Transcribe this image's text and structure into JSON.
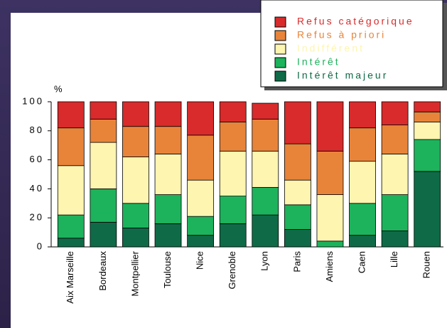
{
  "chart_data": {
    "type": "stacked_bar",
    "y_label": "%",
    "categories": [
      "Aix Marseille",
      "Bordeaux",
      "Montpellier",
      "Toulouse",
      "Nice",
      "Grenoble",
      "Lyon",
      "Paris",
      "Amiens",
      "Caen",
      "Lille",
      "Rouen"
    ],
    "series": [
      {
        "name": "Intérêt majeur",
        "color": "#0f6b47",
        "values": [
          6,
          17,
          13,
          16,
          8,
          16,
          22,
          12,
          0,
          8,
          11,
          52
        ]
      },
      {
        "name": "Intérêt",
        "color": "#1db35c",
        "values": [
          16,
          23,
          17,
          20,
          13,
          19,
          19,
          17,
          4,
          22,
          25,
          22
        ]
      },
      {
        "name": "Indifférent",
        "color": "#fdf5b0",
        "values": [
          34,
          32,
          32,
          28,
          25,
          31,
          25,
          17,
          32,
          29,
          28,
          12
        ]
      },
      {
        "name": "Refus à priori",
        "color": "#e8843a",
        "values": [
          26,
          16,
          21,
          19,
          31,
          20,
          22,
          25,
          30,
          23,
          20,
          7
        ]
      },
      {
        "name": "Refus catégorique",
        "color": "#d92b2b",
        "values": [
          18,
          12,
          17,
          17,
          23,
          14,
          11,
          29,
          34,
          18,
          16,
          7
        ]
      }
    ],
    "ylim": [
      0,
      100
    ],
    "yticks": [
      0,
      20,
      40,
      60,
      80,
      100
    ],
    "legend": "top-right"
  }
}
